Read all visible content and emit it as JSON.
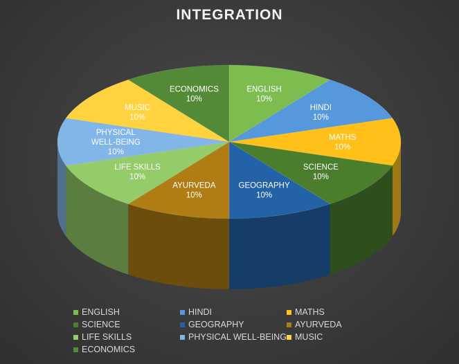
{
  "chart_data": {
    "type": "pie",
    "title": "INTEGRATION",
    "categories": [
      "ENGLISH",
      "HINDI",
      "MATHS",
      "SCIENCE",
      "GEOGRAPHY",
      "AYURVEDA",
      "LIFE SKILLS",
      "PHYSICAL WELL-BEING",
      "MUSIC",
      "ECONOMICS"
    ],
    "values": [
      10,
      10,
      10,
      10,
      10,
      10,
      10,
      10,
      10,
      10
    ],
    "value_labels": [
      "10%",
      "10%",
      "10%",
      "10%",
      "10%",
      "10%",
      "10%",
      "10%",
      "10%",
      "10%"
    ],
    "colors": [
      "#7dbd4f",
      "#5598dc",
      "#ffc119",
      "#4a7d2c",
      "#2462a8",
      "#b07c14",
      "#93cc68",
      "#82b5e8",
      "#ffd23f",
      "#538a37"
    ],
    "style": "3d",
    "legend_position": "bottom"
  }
}
